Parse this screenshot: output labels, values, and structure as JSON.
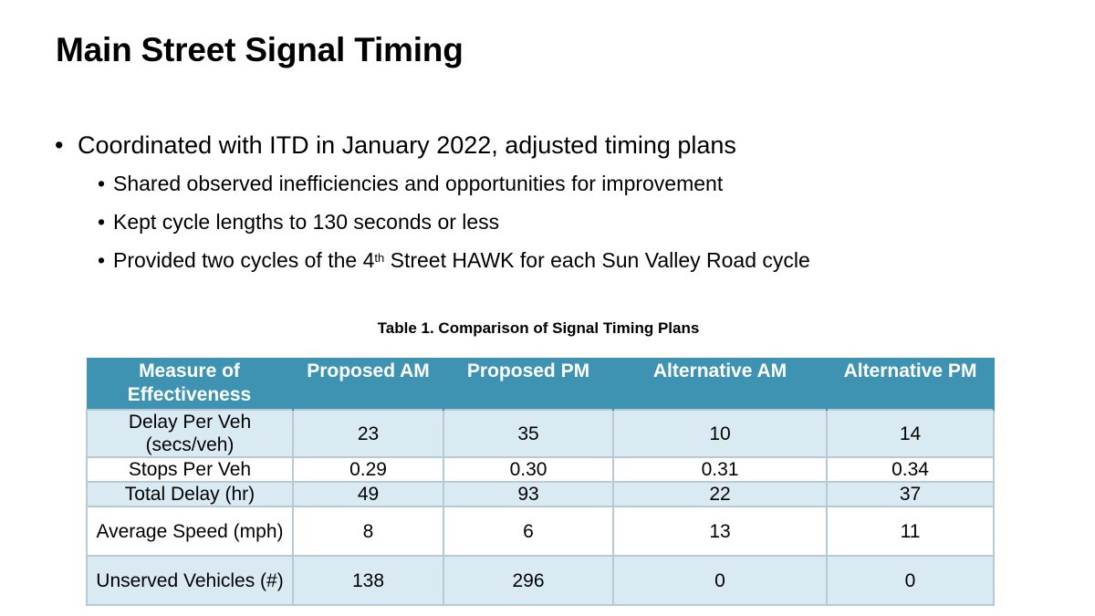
{
  "slide": {
    "title": "Main Street Signal Timing",
    "bullet": "Coordinated with ITD in January 2022, adjusted timing plans",
    "sub_bullets": [
      "Shared observed inefficiencies and opportunities for improvement",
      "Kept cycle lengths to 130 seconds or less"
    ],
    "sub3_prefix": "Provided two cycles of the 4",
    "sub3_sup": "th",
    "sub3_suffix": " Street HAWK for each Sun Valley Road cycle",
    "bullet_glyph": "•"
  },
  "table": {
    "caption": "Table 1. Comparison of Signal Timing Plans",
    "headers": [
      "Measure of Effectiveness",
      "Proposed AM",
      "Proposed PM",
      "Alternative AM",
      "Alternative PM"
    ],
    "rows": [
      [
        "Delay Per Veh (secs/veh)",
        "23",
        "35",
        "10",
        "14"
      ],
      [
        "Stops Per Veh",
        "0.29",
        "0.30",
        "0.31",
        "0.34"
      ],
      [
        "Total Delay (hr)",
        "49",
        "93",
        "22",
        "37"
      ],
      [
        "Average Speed (mph)",
        "8",
        "6",
        "13",
        "11"
      ],
      [
        "Unserved Vehicles (#)",
        "138",
        "296",
        "0",
        "0"
      ]
    ]
  },
  "colors": {
    "header_bg": "#3d93b1",
    "row_shade": "#daeaf2",
    "border": "#b7c9d3"
  }
}
